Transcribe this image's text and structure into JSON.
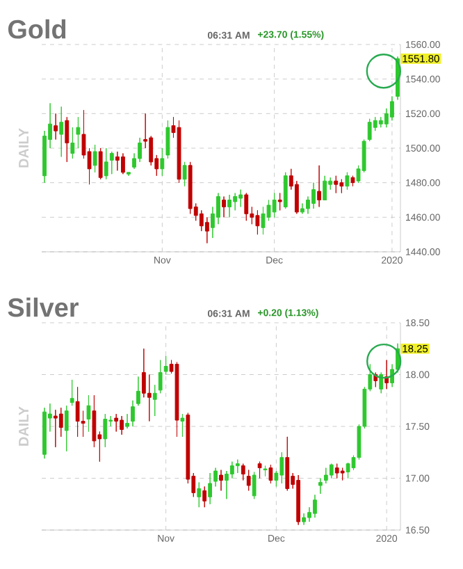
{
  "chart_data": [
    {
      "type": "candlestick",
      "title": "Gold",
      "ylabel": "DAILY",
      "annotations": [
        "06:31 AM",
        "+23.70 (1.55%)",
        "1551.80"
      ],
      "categories": [
        null,
        null,
        null,
        null,
        null,
        null,
        null,
        null,
        null,
        null,
        null,
        null,
        null,
        null,
        null,
        null,
        null,
        null,
        null,
        null,
        null,
        "Nov",
        null,
        null,
        null,
        null,
        null,
        null,
        null,
        null,
        null,
        null,
        null,
        null,
        null,
        null,
        null,
        null,
        null,
        null,
        null,
        "Dec",
        null,
        null,
        null,
        null,
        null,
        null,
        null,
        null,
        null,
        null,
        null,
        null,
        null,
        null,
        null,
        null,
        null,
        null,
        null,
        null,
        "2020",
        null
      ],
      "ohlc": [
        [
          1484,
          1510,
          1480,
          1507
        ],
        [
          1505,
          1526,
          1500,
          1514
        ],
        [
          1513,
          1520,
          1505,
          1510
        ],
        [
          1508,
          1524,
          1495,
          1515
        ],
        [
          1516,
          1518,
          1492,
          1503
        ],
        [
          1497,
          1512,
          1494,
          1503
        ],
        [
          1508,
          1518,
          1500,
          1512
        ],
        [
          1508,
          1522,
          1494,
          1496
        ],
        [
          1498,
          1500,
          1479,
          1488
        ],
        [
          1490,
          1502,
          1486,
          1498
        ],
        [
          1498,
          1500,
          1482,
          1483
        ],
        [
          1484,
          1500,
          1482,
          1492
        ],
        [
          1493,
          1498,
          1485,
          1497
        ],
        [
          1495,
          1498,
          1487,
          1493
        ],
        [
          1495,
          1497,
          1485,
          1486
        ],
        [
          1485,
          1486,
          1484,
          1486
        ],
        [
          1489,
          1497,
          1488,
          1494
        ],
        [
          1494,
          1506,
          1492,
          1503
        ],
        [
          1505,
          1520,
          1500,
          1504
        ],
        [
          1506,
          1507,
          1490,
          1492
        ],
        [
          1494,
          1496,
          1484,
          1488
        ],
        [
          1488,
          1500,
          1484,
          1494
        ],
        [
          1496,
          1516,
          1494,
          1512
        ],
        [
          1513,
          1518,
          1506,
          1509
        ],
        [
          1512,
          1516,
          1480,
          1482
        ],
        [
          1482,
          1492,
          1478,
          1490
        ],
        [
          1490,
          1492,
          1462,
          1465
        ],
        [
          1466,
          1468,
          1458,
          1461
        ],
        [
          1462,
          1464,
          1452,
          1455
        ],
        [
          1457,
          1460,
          1445,
          1452
        ],
        [
          1454,
          1466,
          1448,
          1462
        ],
        [
          1460,
          1474,
          1456,
          1472
        ],
        [
          1470,
          1472,
          1460,
          1466
        ],
        [
          1466,
          1473,
          1460,
          1470
        ],
        [
          1469,
          1474,
          1464,
          1472
        ],
        [
          1471,
          1476,
          1466,
          1473
        ],
        [
          1473,
          1474,
          1458,
          1462
        ],
        [
          1462,
          1466,
          1456,
          1460
        ],
        [
          1461,
          1464,
          1450,
          1455
        ],
        [
          1454,
          1466,
          1450,
          1462
        ],
        [
          1460,
          1470,
          1458,
          1467
        ],
        [
          1463,
          1474,
          1460,
          1470
        ],
        [
          1470,
          1474,
          1464,
          1469
        ],
        [
          1466,
          1486,
          1465,
          1484
        ],
        [
          1484,
          1488,
          1476,
          1478
        ],
        [
          1479,
          1481,
          1462,
          1463
        ],
        [
          1463,
          1468,
          1462,
          1465
        ],
        [
          1465,
          1472,
          1462,
          1470
        ],
        [
          1468,
          1480,
          1465,
          1476
        ],
        [
          1475,
          1490,
          1466,
          1470
        ],
        [
          1470,
          1484,
          1470,
          1481
        ],
        [
          1479,
          1483,
          1476,
          1481
        ],
        [
          1481,
          1484,
          1474,
          1479
        ],
        [
          1480,
          1482,
          1474,
          1478
        ],
        [
          1478,
          1486,
          1476,
          1484
        ],
        [
          1483,
          1484,
          1478,
          1480
        ],
        [
          1481,
          1490,
          1480,
          1488
        ],
        [
          1487,
          1505,
          1486,
          1504
        ],
        [
          1505,
          1517,
          1504,
          1515
        ],
        [
          1512,
          1518,
          1510,
          1516
        ],
        [
          1514,
          1518,
          1512,
          1516
        ],
        [
          1514,
          1523,
          1512,
          1520
        ],
        [
          1518,
          1530,
          1516,
          1527
        ],
        [
          1530,
          1553,
          1528,
          1551.8
        ]
      ],
      "colors": [
        "#2ec82e",
        "#2ec82e",
        "#c00000",
        "#2ec82e",
        "#c00000",
        "#2ec82e",
        "#2ec82e",
        "#c00000",
        "#c00000",
        "#2ec82e",
        "#c00000",
        "#2ec82e",
        "#2ec82e",
        "#c00000",
        "#c00000",
        "#2ec82e",
        "#2ec82e",
        "#2ec82e",
        "#c00000",
        "#c00000",
        "#c00000",
        "#2ec82e",
        "#2ec82e",
        "#c00000",
        "#c00000",
        "#2ec82e",
        "#c00000",
        "#c00000",
        "#c00000",
        "#c00000",
        "#2ec82e",
        "#2ec82e",
        "#c00000",
        "#2ec82e",
        "#2ec82e",
        "#2ec82e",
        "#c00000",
        "#c00000",
        "#c00000",
        "#2ec82e",
        "#2ec82e",
        "#2ec82e",
        "#c00000",
        "#2ec82e",
        "#c00000",
        "#c00000",
        "#2ec82e",
        "#2ec82e",
        "#2ec82e",
        "#c00000",
        "#2ec82e",
        "#2ec82e",
        "#c00000",
        "#c00000",
        "#2ec82e",
        "#c00000",
        "#2ec82e",
        "#2ec82e",
        "#2ec82e",
        "#2ec82e",
        "#2ec82e",
        "#2ec82e",
        "#2ec82e",
        "#2ec82e"
      ],
      "ylim": [
        1440,
        1560
      ],
      "yticks": [
        {
          "value": 1440,
          "label": "1440.00"
        },
        {
          "value": 1460,
          "label": "1460.00"
        },
        {
          "value": 1480,
          "label": "1480.00"
        },
        {
          "value": 1500,
          "label": "1500.00"
        },
        {
          "value": 1520,
          "label": "1520.00"
        },
        {
          "value": 1540,
          "label": "1540.00"
        },
        {
          "value": 1560,
          "label": "1560.00"
        }
      ],
      "grid": true
    },
    {
      "type": "candlestick",
      "title": "Silver",
      "ylabel": "DAILY",
      "annotations": [
        "06:31 AM",
        "+0.20 (1.13%)",
        "18.25"
      ],
      "categories": [
        null,
        null,
        null,
        null,
        null,
        null,
        null,
        null,
        null,
        null,
        null,
        null,
        null,
        null,
        null,
        null,
        null,
        null,
        null,
        null,
        null,
        null,
        "Nov",
        null,
        null,
        null,
        null,
        null,
        null,
        null,
        null,
        null,
        null,
        null,
        null,
        null,
        null,
        null,
        null,
        null,
        null,
        null,
        "Dec",
        null,
        null,
        null,
        null,
        null,
        null,
        null,
        null,
        null,
        null,
        null,
        null,
        null,
        null,
        null,
        null,
        null,
        null,
        null,
        "2020",
        null,
        null
      ],
      "ohlc": [
        [
          17.23,
          17.68,
          17.19,
          17.64
        ],
        [
          17.58,
          17.72,
          17.45,
          17.62
        ],
        [
          17.6,
          17.66,
          17.3,
          17.58
        ],
        [
          17.62,
          17.68,
          17.4,
          17.49
        ],
        [
          17.46,
          17.7,
          17.26,
          17.65
        ],
        [
          17.73,
          17.95,
          17.7,
          17.77
        ],
        [
          17.74,
          17.88,
          17.4,
          17.55
        ],
        [
          17.55,
          17.65,
          17.4,
          17.53
        ],
        [
          17.57,
          17.8,
          17.45,
          17.7
        ],
        [
          17.65,
          17.8,
          17.3,
          17.36
        ],
        [
          17.42,
          17.45,
          17.16,
          17.38
        ],
        [
          17.38,
          17.62,
          17.3,
          17.57
        ],
        [
          17.55,
          17.6,
          17.5,
          17.56
        ],
        [
          17.58,
          17.62,
          17.45,
          17.55
        ],
        [
          17.56,
          17.6,
          17.42,
          17.47
        ],
        [
          17.5,
          17.62,
          17.48,
          17.53
        ],
        [
          17.55,
          17.75,
          17.5,
          17.69
        ],
        [
          17.72,
          17.98,
          17.7,
          17.84
        ],
        [
          18.02,
          18.25,
          17.78,
          17.82
        ],
        [
          17.82,
          18.0,
          17.55,
          17.78
        ],
        [
          17.76,
          17.9,
          17.6,
          17.82
        ],
        [
          17.85,
          18.14,
          17.82,
          18.02
        ],
        [
          18.03,
          18.18,
          18.0,
          18.08
        ],
        [
          18.1,
          18.14,
          18.01,
          18.03
        ],
        [
          18.1,
          18.12,
          17.4,
          17.56
        ],
        [
          17.55,
          17.62,
          17.4,
          17.58
        ],
        [
          17.61,
          17.63,
          16.95,
          16.99
        ],
        [
          17.02,
          17.05,
          16.82,
          16.86
        ],
        [
          16.82,
          16.96,
          16.72,
          16.9
        ],
        [
          16.88,
          16.92,
          16.72,
          16.78
        ],
        [
          16.82,
          17.05,
          16.75,
          16.95
        ],
        [
          16.97,
          17.1,
          16.92,
          17.07
        ],
        [
          17.03,
          17.08,
          16.88,
          16.98
        ],
        [
          16.98,
          17.07,
          16.8,
          17.04
        ],
        [
          17.04,
          17.16,
          17.0,
          17.12
        ],
        [
          17.12,
          17.18,
          17.05,
          17.14
        ],
        [
          17.12,
          17.14,
          16.98,
          17.04
        ],
        [
          17.02,
          17.08,
          16.88,
          16.93
        ],
        [
          16.83,
          17.06,
          16.8,
          17.03
        ],
        [
          17.14,
          17.16,
          17.0,
          17.1
        ],
        [
          17.08,
          17.12,
          17.02,
          17.09
        ],
        [
          17.1,
          17.13,
          16.95,
          16.98
        ],
        [
          16.98,
          17.07,
          16.92,
          17.05
        ],
        [
          17.03,
          17.25,
          16.95,
          17.2
        ],
        [
          17.2,
          17.4,
          16.88,
          16.9
        ],
        [
          17.02,
          17.05,
          16.9,
          16.94
        ],
        [
          16.98,
          17.03,
          16.55,
          16.58
        ],
        [
          16.58,
          16.66,
          16.55,
          16.62
        ],
        [
          16.62,
          16.72,
          16.58,
          16.67
        ],
        [
          16.66,
          16.84,
          16.62,
          16.79
        ],
        [
          16.93,
          17.0,
          16.85,
          16.96
        ],
        [
          16.98,
          17.1,
          16.95,
          17.03
        ],
        [
          17.03,
          17.14,
          17.0,
          17.13
        ],
        [
          17.1,
          17.14,
          17.0,
          17.05
        ],
        [
          17.07,
          17.1,
          16.98,
          17.05
        ],
        [
          17.06,
          17.15,
          17.0,
          17.14
        ],
        [
          17.1,
          17.22,
          17.08,
          17.2
        ],
        [
          17.2,
          17.52,
          17.18,
          17.5
        ],
        [
          17.5,
          17.88,
          17.48,
          17.86
        ],
        [
          17.86,
          18.1,
          17.84,
          18.0
        ],
        [
          18.0,
          18.02,
          17.88,
          17.94
        ],
        [
          17.86,
          18.02,
          17.82,
          18.0
        ],
        [
          17.98,
          18.14,
          17.86,
          17.92
        ],
        [
          17.92,
          18.1,
          17.88,
          18.05
        ],
        [
          18.05,
          18.3,
          18.02,
          18.25
        ]
      ],
      "colors": [
        "#2ec82e",
        "#2ec82e",
        "#c00000",
        "#c00000",
        "#2ec82e",
        "#2ec82e",
        "#c00000",
        "#c00000",
        "#2ec82e",
        "#c00000",
        "#c00000",
        "#2ec82e",
        "#2ec82e",
        "#c00000",
        "#c00000",
        "#2ec82e",
        "#2ec82e",
        "#2ec82e",
        "#c00000",
        "#c00000",
        "#2ec82e",
        "#2ec82e",
        "#2ec82e",
        "#c00000",
        "#c00000",
        "#2ec82e",
        "#c00000",
        "#c00000",
        "#2ec82e",
        "#c00000",
        "#2ec82e",
        "#2ec82e",
        "#c00000",
        "#2ec82e",
        "#2ec82e",
        "#2ec82e",
        "#c00000",
        "#c00000",
        "#2ec82e",
        "#c00000",
        "#2ec82e",
        "#c00000",
        "#2ec82e",
        "#2ec82e",
        "#c00000",
        "#c00000",
        "#c00000",
        "#2ec82e",
        "#2ec82e",
        "#2ec82e",
        "#2ec82e",
        "#2ec82e",
        "#2ec82e",
        "#c00000",
        "#c00000",
        "#2ec82e",
        "#2ec82e",
        "#2ec82e",
        "#2ec82e",
        "#2ec82e",
        "#c00000",
        "#2ec82e",
        "#c00000",
        "#2ec82e",
        "#2ec82e"
      ],
      "ylim": [
        16.5,
        18.5
      ],
      "yticks": [
        {
          "value": 16.5,
          "label": "16.50"
        },
        {
          "value": 17,
          "label": "17.00"
        },
        {
          "value": 17.5,
          "label": "17.50"
        },
        {
          "value": 18,
          "label": "18.00"
        },
        {
          "value": 18.5,
          "label": "18.50"
        }
      ],
      "grid": true
    }
  ]
}
